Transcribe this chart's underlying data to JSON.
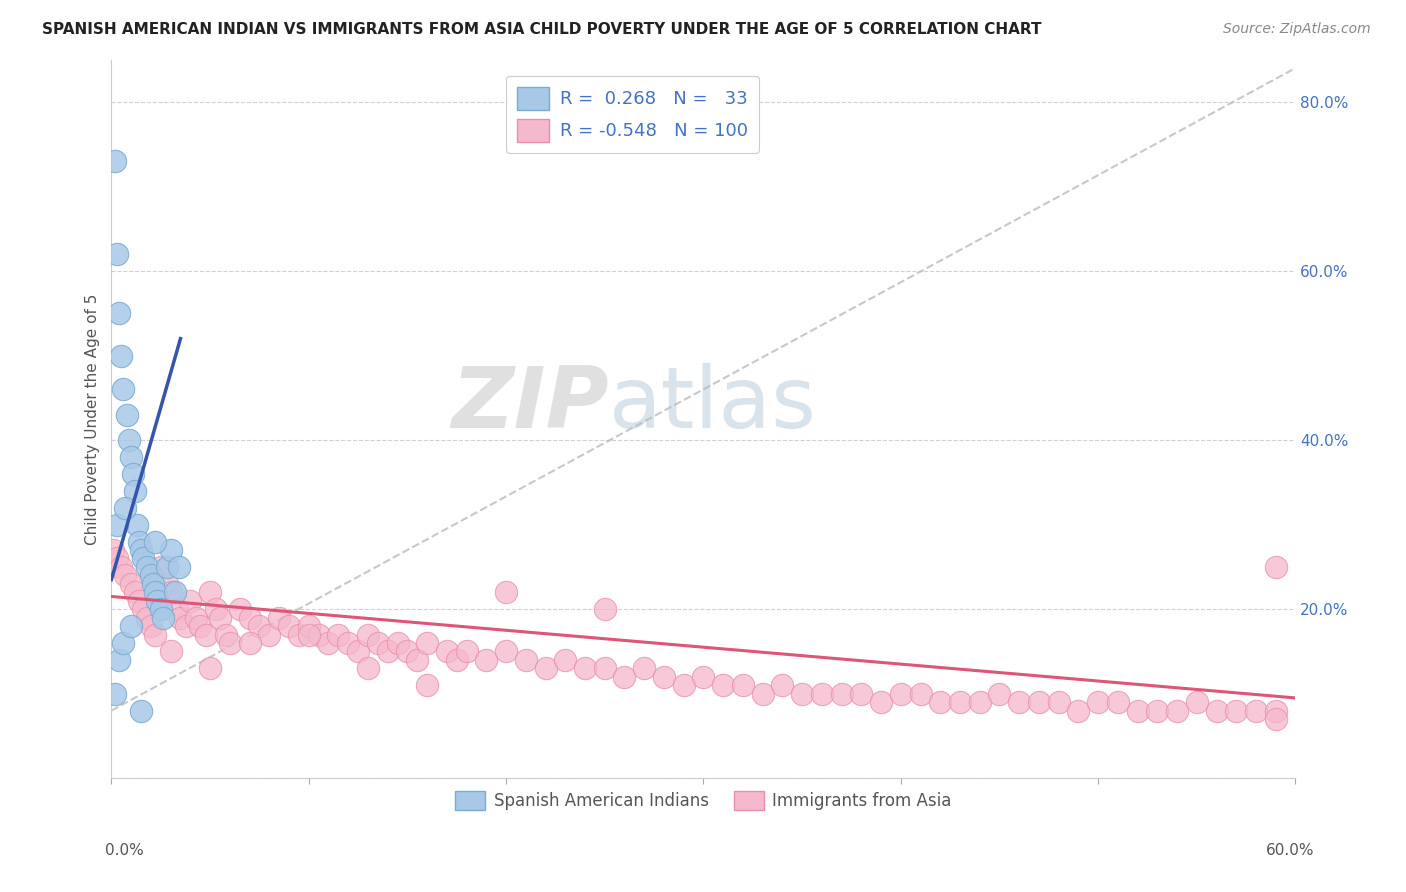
{
  "title": "SPANISH AMERICAN INDIAN VS IMMIGRANTS FROM ASIA CHILD POVERTY UNDER THE AGE OF 5 CORRELATION CHART",
  "source": "Source: ZipAtlas.com",
  "ylabel": "Child Poverty Under the Age of 5",
  "watermark_zip": "ZIP",
  "watermark_atlas": "atlas",
  "legend_blue_r": "0.268",
  "legend_blue_n": "33",
  "legend_pink_r": "-0.548",
  "legend_pink_n": "100",
  "legend_blue_label": "Spanish American Indians",
  "legend_pink_label": "Immigrants from Asia",
  "xlim": [
    0.0,
    0.6
  ],
  "ylim": [
    0.0,
    0.85
  ],
  "yticks": [
    0.0,
    0.2,
    0.4,
    0.6,
    0.8
  ],
  "title_color": "#222222",
  "source_color": "#888888",
  "blue_scatter_color": "#a8c8e8",
  "blue_scatter_edge": "#7aaad0",
  "pink_scatter_color": "#f5b8cc",
  "pink_scatter_edge": "#e890a8",
  "blue_line_color": "#3355aa",
  "pink_line_color": "#dd5577",
  "trendline_color": "#bbbbbb",
  "axis_label_color": "#4472c4",
  "xtick_left_label": "0.0%",
  "xtick_right_label": "60.0%",
  "blue_points_x": [
    0.002,
    0.003,
    0.004,
    0.005,
    0.006,
    0.008,
    0.009,
    0.01,
    0.011,
    0.012,
    0.013,
    0.014,
    0.015,
    0.016,
    0.018,
    0.02,
    0.021,
    0.022,
    0.023,
    0.025,
    0.026,
    0.028,
    0.03,
    0.032,
    0.034,
    0.002,
    0.004,
    0.006,
    0.01,
    0.015,
    0.022,
    0.003,
    0.007
  ],
  "blue_points_y": [
    0.73,
    0.62,
    0.55,
    0.5,
    0.46,
    0.43,
    0.4,
    0.38,
    0.36,
    0.34,
    0.3,
    0.28,
    0.27,
    0.26,
    0.25,
    0.24,
    0.23,
    0.22,
    0.21,
    0.2,
    0.19,
    0.25,
    0.27,
    0.22,
    0.25,
    0.1,
    0.14,
    0.16,
    0.18,
    0.08,
    0.28,
    0.3,
    0.32
  ],
  "pink_points_x": [
    0.001,
    0.003,
    0.005,
    0.007,
    0.01,
    0.012,
    0.014,
    0.016,
    0.018,
    0.02,
    0.022,
    0.025,
    0.028,
    0.03,
    0.033,
    0.035,
    0.038,
    0.04,
    0.043,
    0.045,
    0.048,
    0.05,
    0.053,
    0.055,
    0.058,
    0.06,
    0.065,
    0.07,
    0.075,
    0.08,
    0.085,
    0.09,
    0.095,
    0.1,
    0.105,
    0.11,
    0.115,
    0.12,
    0.125,
    0.13,
    0.135,
    0.14,
    0.145,
    0.15,
    0.155,
    0.16,
    0.17,
    0.175,
    0.18,
    0.19,
    0.2,
    0.21,
    0.22,
    0.23,
    0.24,
    0.25,
    0.26,
    0.27,
    0.28,
    0.29,
    0.3,
    0.31,
    0.32,
    0.33,
    0.34,
    0.35,
    0.36,
    0.37,
    0.38,
    0.39,
    0.4,
    0.41,
    0.42,
    0.43,
    0.44,
    0.45,
    0.46,
    0.47,
    0.48,
    0.49,
    0.5,
    0.51,
    0.52,
    0.53,
    0.54,
    0.55,
    0.56,
    0.57,
    0.58,
    0.59,
    0.03,
    0.05,
    0.07,
    0.1,
    0.13,
    0.16,
    0.2,
    0.25,
    0.59,
    0.59
  ],
  "pink_points_y": [
    0.27,
    0.26,
    0.25,
    0.24,
    0.23,
    0.22,
    0.21,
    0.2,
    0.19,
    0.18,
    0.17,
    0.25,
    0.23,
    0.22,
    0.2,
    0.19,
    0.18,
    0.21,
    0.19,
    0.18,
    0.17,
    0.22,
    0.2,
    0.19,
    0.17,
    0.16,
    0.2,
    0.19,
    0.18,
    0.17,
    0.19,
    0.18,
    0.17,
    0.18,
    0.17,
    0.16,
    0.17,
    0.16,
    0.15,
    0.17,
    0.16,
    0.15,
    0.16,
    0.15,
    0.14,
    0.16,
    0.15,
    0.14,
    0.15,
    0.14,
    0.15,
    0.14,
    0.13,
    0.14,
    0.13,
    0.13,
    0.12,
    0.13,
    0.12,
    0.11,
    0.12,
    0.11,
    0.11,
    0.1,
    0.11,
    0.1,
    0.1,
    0.1,
    0.1,
    0.09,
    0.1,
    0.1,
    0.09,
    0.09,
    0.09,
    0.1,
    0.09,
    0.09,
    0.09,
    0.08,
    0.09,
    0.09,
    0.08,
    0.08,
    0.08,
    0.09,
    0.08,
    0.08,
    0.08,
    0.08,
    0.15,
    0.13,
    0.16,
    0.17,
    0.13,
    0.11,
    0.22,
    0.2,
    0.25,
    0.07
  ]
}
